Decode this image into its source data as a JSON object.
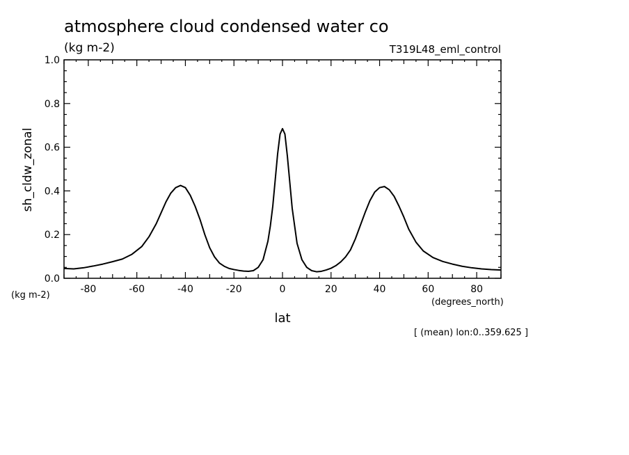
{
  "chart_data": {
    "type": "line",
    "title": "atmosphere cloud condensed water co",
    "subtitle": "(kg m-2)",
    "experiment": "T319L48_eml_control",
    "ylabel": "sh_cldw_zonal",
    "yunits": "(kg m-2)",
    "xlabel": "lat",
    "xunits": "(degrees_north)",
    "footnote": "[ (mean) lon:0..359.625 ]",
    "xlim": [
      -90,
      90
    ],
    "ylim": [
      0,
      1
    ],
    "x_ticks": [
      -80,
      -60,
      -40,
      -20,
      0,
      20,
      40,
      60,
      80
    ],
    "x_tick_labels": [
      "-80",
      "-60",
      "-40",
      "-20",
      "0",
      "20",
      "40",
      "60",
      "80"
    ],
    "y_ticks": [
      0,
      0.2,
      0.4,
      0.6,
      0.8,
      1.0
    ],
    "y_tick_labels": [
      "0.0",
      "0.2",
      "0.4",
      "0.6",
      "0.8",
      "1.0"
    ],
    "series": [
      {
        "name": "sh_cldw_zonal",
        "color": "#000000",
        "x": [
          -90,
          -86,
          -82,
          -78,
          -74,
          -70,
          -66,
          -62,
          -58,
          -55,
          -52,
          -50,
          -48,
          -46,
          -44,
          -42,
          -40,
          -38,
          -36,
          -34,
          -32,
          -30,
          -28,
          -26,
          -24,
          -22,
          -20,
          -18,
          -16,
          -14,
          -12,
          -10,
          -8,
          -6,
          -5,
          -4,
          -3,
          -2,
          -1,
          0,
          1,
          2,
          3,
          4,
          5,
          6,
          8,
          10,
          12,
          14,
          16,
          18,
          20,
          22,
          24,
          26,
          28,
          30,
          32,
          34,
          36,
          38,
          40,
          42,
          44,
          46,
          48,
          50,
          52,
          55,
          58,
          62,
          66,
          70,
          74,
          78,
          82,
          86,
          90
        ],
        "values": [
          0.045,
          0.043,
          0.048,
          0.056,
          0.065,
          0.076,
          0.088,
          0.11,
          0.145,
          0.19,
          0.25,
          0.3,
          0.35,
          0.39,
          0.415,
          0.425,
          0.415,
          0.38,
          0.33,
          0.27,
          0.2,
          0.14,
          0.098,
          0.07,
          0.055,
          0.045,
          0.04,
          0.036,
          0.033,
          0.032,
          0.035,
          0.05,
          0.085,
          0.17,
          0.24,
          0.33,
          0.45,
          0.57,
          0.66,
          0.685,
          0.66,
          0.56,
          0.44,
          0.32,
          0.24,
          0.16,
          0.085,
          0.05,
          0.035,
          0.03,
          0.032,
          0.038,
          0.046,
          0.058,
          0.075,
          0.098,
          0.13,
          0.18,
          0.24,
          0.3,
          0.355,
          0.395,
          0.415,
          0.42,
          0.405,
          0.375,
          0.33,
          0.28,
          0.225,
          0.165,
          0.125,
          0.095,
          0.077,
          0.065,
          0.055,
          0.048,
          0.043,
          0.04,
          0.038
        ]
      }
    ]
  }
}
